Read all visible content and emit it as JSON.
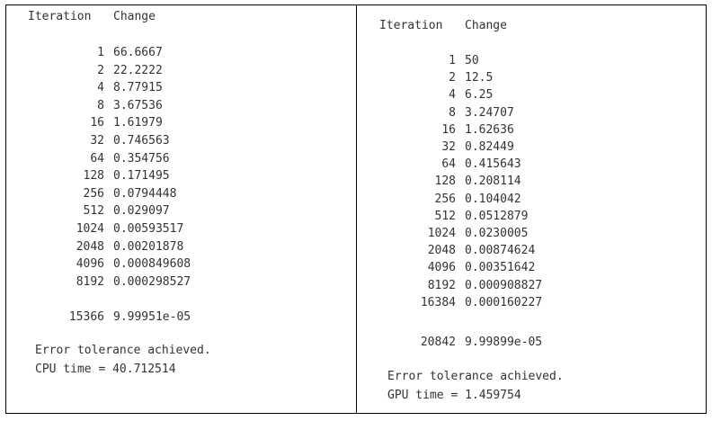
{
  "cpu_panel": {
    "header_iteration": "Iteration",
    "header_change": "Change",
    "rows": [
      {
        "iteration": "1",
        "change": "66.6667"
      },
      {
        "iteration": "2",
        "change": "22.2222"
      },
      {
        "iteration": "4",
        "change": "8.77915"
      },
      {
        "iteration": "8",
        "change": "3.67536"
      },
      {
        "iteration": "16",
        "change": "1.61979"
      },
      {
        "iteration": "32",
        "change": "0.746563"
      },
      {
        "iteration": "64",
        "change": "0.354756"
      },
      {
        "iteration": "128",
        "change": "0.171495"
      },
      {
        "iteration": "256",
        "change": "0.0794448"
      },
      {
        "iteration": "512",
        "change": "0.029097"
      },
      {
        "iteration": "1024",
        "change": "0.00593517"
      },
      {
        "iteration": "2048",
        "change": "0.00201878"
      },
      {
        "iteration": "4096",
        "change": "0.000849608"
      },
      {
        "iteration": "8192",
        "change": "0.000298527"
      }
    ],
    "final": {
      "iteration": "15366",
      "change": "9.99951e-05"
    },
    "message": "Error tolerance achieved.",
    "time": "CPU time = 40.712514"
  },
  "gpu_panel": {
    "header_iteration": "Iteration",
    "header_change": "Change",
    "rows": [
      {
        "iteration": "1",
        "change": "50"
      },
      {
        "iteration": "2",
        "change": "12.5"
      },
      {
        "iteration": "4",
        "change": "6.25"
      },
      {
        "iteration": "8",
        "change": "3.24707"
      },
      {
        "iteration": "16",
        "change": "1.62636"
      },
      {
        "iteration": "32",
        "change": "0.82449"
      },
      {
        "iteration": "64",
        "change": "0.415643"
      },
      {
        "iteration": "128",
        "change": "0.208114"
      },
      {
        "iteration": "256",
        "change": "0.104042"
      },
      {
        "iteration": "512",
        "change": "0.0512879"
      },
      {
        "iteration": "1024",
        "change": "0.0230005"
      },
      {
        "iteration": "2048",
        "change": "0.00874624"
      },
      {
        "iteration": "4096",
        "change": "0.00351642"
      },
      {
        "iteration": "8192",
        "change": "0.000908827"
      },
      {
        "iteration": "16384",
        "change": "0.000160227"
      }
    ],
    "final": {
      "iteration": "20842",
      "change": "9.99899e-05"
    },
    "message": "Error tolerance achieved.",
    "time": "GPU time = 1.459754"
  }
}
